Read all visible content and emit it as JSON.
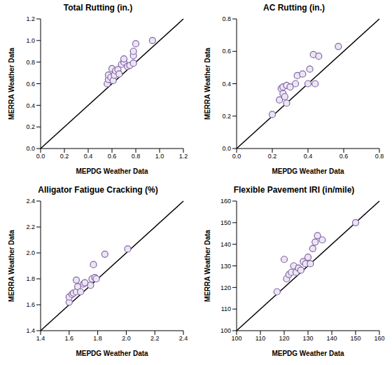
{
  "chart_data": [
    {
      "type": "scatter",
      "title": "Total Rutting (in.)",
      "x_label": "MEPDG Weather Data",
      "y_label": "MERRA Weather Data",
      "x": [
        0.56,
        0.57,
        0.57,
        0.59,
        0.6,
        0.61,
        0.62,
        0.63,
        0.65,
        0.66,
        0.68,
        0.7,
        0.7,
        0.73,
        0.75,
        0.78,
        0.78,
        0.78,
        0.8,
        0.94
      ],
      "values": [
        0.6,
        0.64,
        0.68,
        0.66,
        0.74,
        0.63,
        0.68,
        0.72,
        0.73,
        0.69,
        0.78,
        0.8,
        0.83,
        0.76,
        0.77,
        0.79,
        0.86,
        0.9,
        0.97,
        1.0
      ],
      "color": "#8064a2",
      "marker": "circle",
      "grid": false,
      "xlim": [
        0,
        1.2
      ],
      "xticks": [
        {
          "value": 0,
          "label": "0.0"
        },
        0.2,
        0.4,
        0.6,
        0.8,
        {
          "value": 1,
          "label": "1.0"
        },
        1.2
      ],
      "ylim": [
        0,
        1.2
      ],
      "yticks": [
        {
          "value": 0,
          "label": "0.0"
        },
        0.2,
        0.4,
        0.6,
        0.8,
        {
          "value": 1,
          "label": "1.0"
        },
        1.2
      ]
    },
    {
      "type": "scatter",
      "title": "AC Rutting (in.)",
      "x_label": "MEPDG Weather Data",
      "y_label": "MERRA Weather Data",
      "x": [
        0.2,
        0.24,
        0.25,
        0.26,
        0.26,
        0.27,
        0.28,
        0.28,
        0.3,
        0.33,
        0.34,
        0.37,
        0.4,
        0.41,
        0.43,
        0.44,
        0.46,
        0.57
      ],
      "values": [
        0.21,
        0.3,
        0.37,
        0.34,
        0.38,
        0.32,
        0.28,
        0.39,
        0.38,
        0.4,
        0.45,
        0.46,
        0.4,
        0.49,
        0.58,
        0.4,
        0.57,
        0.63
      ],
      "color": "#8064a2",
      "marker": "circle",
      "grid": false,
      "xlim": [
        0,
        0.8
      ],
      "xticks": [
        {
          "value": 0,
          "label": "0.0"
        },
        0.2,
        0.4,
        0.6,
        0.8
      ],
      "ylim": [
        0,
        0.8
      ],
      "yticks": [
        {
          "value": 0,
          "label": "0.0"
        },
        0.2,
        0.4,
        0.6,
        0.8
      ]
    },
    {
      "type": "scatter",
      "title": "Alligator Fatigue Cracking (%)",
      "x_label": "MEPDG Weather Data",
      "y_label": "MERRA Weather Data",
      "x": [
        1.6,
        1.6,
        1.62,
        1.63,
        1.65,
        1.65,
        1.66,
        1.68,
        1.7,
        1.71,
        1.75,
        1.76,
        1.77,
        1.78,
        1.79,
        1.85,
        2.01
      ],
      "values": [
        1.62,
        1.66,
        1.68,
        1.69,
        1.7,
        1.79,
        1.74,
        1.7,
        1.76,
        1.77,
        1.75,
        1.8,
        1.91,
        1.81,
        1.8,
        1.99,
        2.03
      ],
      "color": "#8064a2",
      "marker": "circle",
      "grid": false,
      "xlim": [
        1.4,
        2.4
      ],
      "xticks": [
        1.4,
        1.6,
        1.8,
        {
          "value": 2,
          "label": "2.0"
        },
        2.2,
        2.4
      ],
      "ylim": [
        1.4,
        2.4
      ],
      "yticks": [
        1.4,
        1.6,
        1.8,
        {
          "value": 2,
          "label": "2.0"
        },
        2.2,
        2.4
      ]
    },
    {
      "type": "scatter",
      "title": "Flexible Pavement IRI (in/mile)",
      "x_label": "MEPDG Weather Data",
      "y_label": "MERRA Weather Data",
      "x": [
        117,
        120,
        121,
        122,
        123,
        124,
        125,
        126,
        127,
        128,
        129,
        130,
        131,
        132,
        133,
        134,
        136,
        150
      ],
      "values": [
        118,
        133,
        124,
        126,
        127,
        130,
        127,
        129,
        128,
        132,
        131,
        134,
        131,
        138,
        141,
        144,
        142,
        150
      ],
      "color": "#8064a2",
      "marker": "circle",
      "grid": false,
      "xlim": [
        100,
        160
      ],
      "xticks": [
        100,
        110,
        120,
        130,
        140,
        150,
        160
      ],
      "ylim": [
        100,
        160
      ],
      "yticks": [
        100,
        110,
        120,
        130,
        140,
        150,
        160
      ]
    }
  ]
}
